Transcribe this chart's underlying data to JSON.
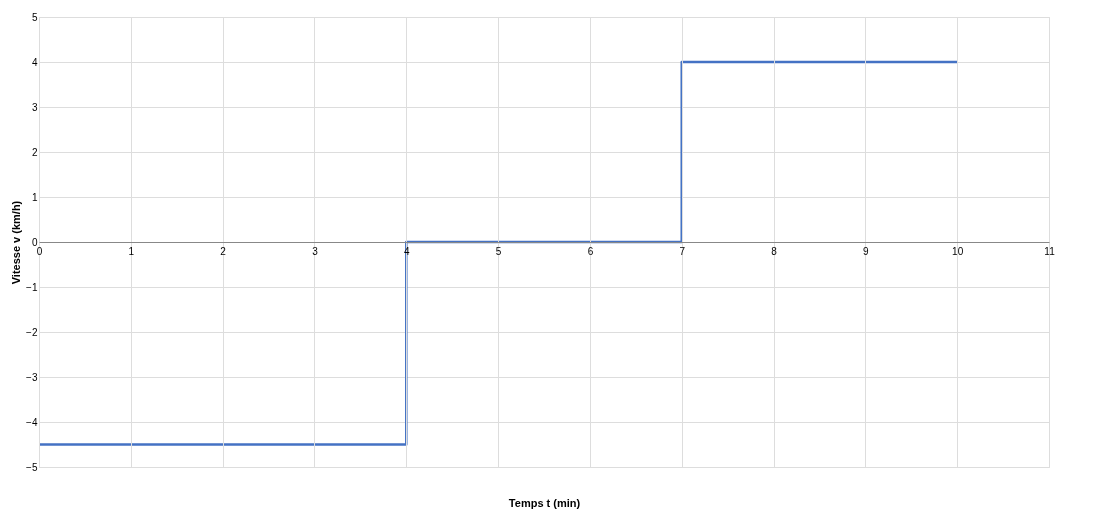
{
  "chart_data": {
    "type": "step",
    "xlabel": "Temps t (min)",
    "ylabel": "Vitesse v (km/h)",
    "x": [
      0,
      4,
      7,
      10
    ],
    "series": [
      {
        "color": "#4472c4",
        "values": [
          -4.5,
          0,
          4,
          4
        ]
      }
    ],
    "xlim": [
      0,
      11
    ],
    "xticks": [
      0,
      1,
      2,
      3,
      4,
      5,
      6,
      7,
      8,
      9,
      10,
      11
    ],
    "ylim": [
      -5,
      5
    ],
    "yticks": [
      -5,
      -4,
      -3,
      -2,
      -1,
      0,
      1,
      2,
      3,
      4,
      5
    ],
    "grid": true,
    "marker": "none",
    "line_style": "solid"
  }
}
